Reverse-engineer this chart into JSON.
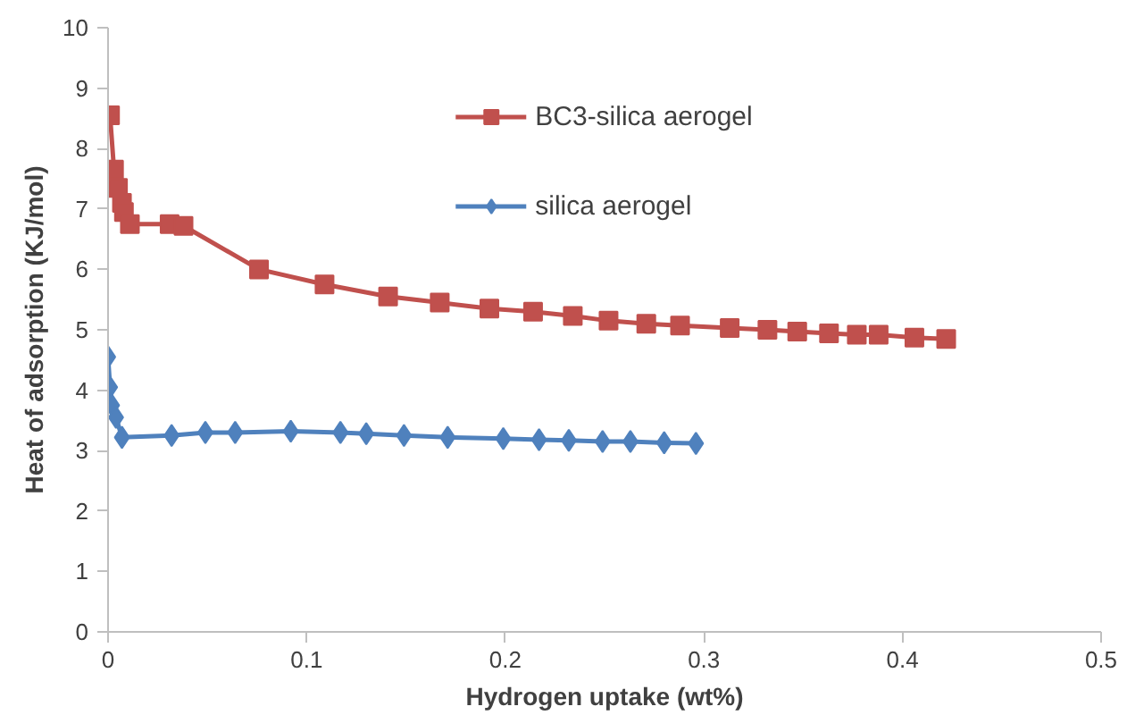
{
  "chart_data": {
    "type": "line",
    "xlabel": "Hydrogen uptake (wt%)",
    "ylabel": "Heat of adsorption (KJ/mol)",
    "xlim": [
      0,
      0.5
    ],
    "ylim": [
      0,
      10
    ],
    "xticks": [
      0,
      0.1,
      0.2,
      0.3,
      0.4,
      0.5
    ],
    "yticks": [
      0,
      1,
      2,
      3,
      4,
      5,
      6,
      7,
      8,
      9,
      10
    ],
    "grid": false,
    "legend": "top",
    "line_style": "solid",
    "series": [
      {
        "name": "BC3-silica aerogel",
        "color": "#c0504d",
        "marker": "square",
        "x": [
          0.001,
          0.003,
          0.005,
          0.007,
          0.008,
          0.011,
          0.031,
          0.038,
          0.076,
          0.109,
          0.141,
          0.167,
          0.192,
          0.214,
          0.234,
          0.252,
          0.271,
          0.288,
          0.313,
          0.332,
          0.347,
          0.363,
          0.377,
          0.388,
          0.406,
          0.422
        ],
        "values": [
          8.55,
          7.65,
          7.35,
          7.1,
          6.95,
          6.75,
          6.75,
          6.72,
          6.0,
          5.75,
          5.55,
          5.45,
          5.35,
          5.3,
          5.23,
          5.15,
          5.1,
          5.07,
          5.03,
          5.0,
          4.97,
          4.94,
          4.92,
          4.92,
          4.87,
          4.85
        ]
      },
      {
        "name": "silica aerogel",
        "color": "#4f81bd",
        "marker": "diamond",
        "x": [
          0,
          0.001,
          0.002,
          0.004,
          0.007,
          0.032,
          0.049,
          0.064,
          0.092,
          0.117,
          0.13,
          0.149,
          0.171,
          0.199,
          0.217,
          0.232,
          0.249,
          0.263,
          0.28,
          0.296
        ],
        "values": [
          4.55,
          4.05,
          3.75,
          3.55,
          3.22,
          3.25,
          3.3,
          3.3,
          3.32,
          3.3,
          3.28,
          3.25,
          3.22,
          3.2,
          3.18,
          3.17,
          3.15,
          3.15,
          3.13,
          3.12
        ]
      }
    ]
  }
}
